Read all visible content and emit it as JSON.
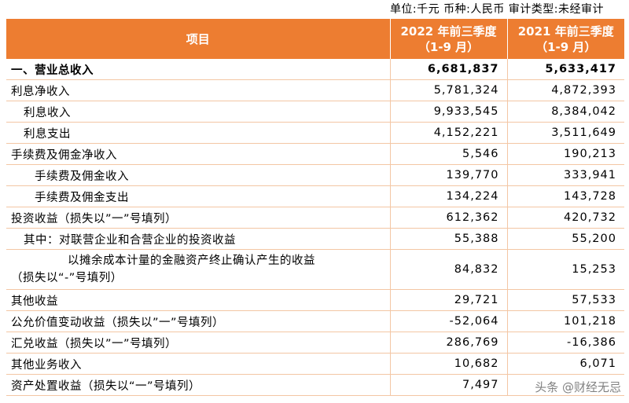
{
  "unit_line": "单位:千元 币种:人民币 审计类型:未经审计",
  "header": {
    "item": "项目",
    "col1_line1": "2022 年前三季度",
    "col1_line2": "（1-9 月）",
    "col2_line1": "2021 年前三季度",
    "col2_line2": "（1-9 月）"
  },
  "rows": [
    {
      "label": "一、营业总收入",
      "v2022": "6,681,837",
      "v2021": "5,633,417"
    },
    {
      "label": "利息净收入",
      "v2022": "5,781,324",
      "v2021": "4,872,393"
    },
    {
      "label": "利息收入",
      "v2022": "9,933,545",
      "v2021": "8,384,042"
    },
    {
      "label": "利息支出",
      "v2022": "4,152,221",
      "v2021": "3,511,649"
    },
    {
      "label": "手续费及佣金净收入",
      "v2022": "5,546",
      "v2021": "190,213"
    },
    {
      "label": "手续费及佣金收入",
      "v2022": "139,770",
      "v2021": "333,941"
    },
    {
      "label": "手续费及佣金支出",
      "v2022": "134,224",
      "v2021": "143,728"
    },
    {
      "label": "投资收益（损失以”一”号填列）",
      "v2022": "612,362",
      "v2021": "420,732"
    },
    {
      "label": "其中：对联营企业和合营企业的投资收益",
      "v2022": "55,388",
      "v2021": "55,200"
    },
    {
      "label_line1": "以摊余成本计量的金融资产终止确认产生的收益",
      "label_line2": "（损失以“-”号填列）",
      "v2022": "84,832",
      "v2021": "15,253"
    },
    {
      "label": "其他收益",
      "v2022": "29,721",
      "v2021": "57,533"
    },
    {
      "label": "公允价值变动收益（损失以”一”号填列）",
      "v2022": "-52,064",
      "v2021": "101,218"
    },
    {
      "label": "汇兑收益（损失以”一”号填列）",
      "v2022": "286,769",
      "v2021": "-16,386"
    },
    {
      "label": "其他业务收入",
      "v2022": "10,682",
      "v2021": "6,071"
    },
    {
      "label": "资产处置收益（损失以“一”号填列）",
      "v2022": "7,497",
      "v2021": ""
    }
  ],
  "watermark": "头条 @财经无忌"
}
